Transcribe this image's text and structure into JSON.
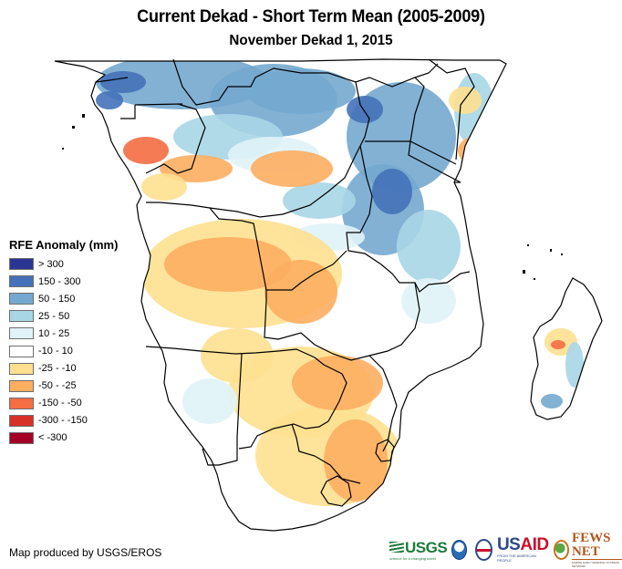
{
  "header": {
    "title": "Current Dekad - Short Term Mean (2005-2009)",
    "subtitle": "November Dekad 1, 2015"
  },
  "legend": {
    "title": "RFE Anomaly (mm)",
    "classes": [
      {
        "label": "> 300",
        "color": "#2b3594"
      },
      {
        "label": "150 - 300",
        "color": "#4472b8"
      },
      {
        "label": "50 - 150",
        "color": "#74a9cf"
      },
      {
        "label": "25 - 50",
        "color": "#a9d6e5"
      },
      {
        "label": "10 - 25",
        "color": "#e0f3f8"
      },
      {
        "label": "-10 - 10",
        "color": "#ffffff"
      },
      {
        "label": "-25 - -10",
        "color": "#fee090"
      },
      {
        "label": "-50 - -25",
        "color": "#fdae61"
      },
      {
        "label": "-150 - -50",
        "color": "#f46d43"
      },
      {
        "label": "-300 - -150",
        "color": "#d73027"
      },
      {
        "label": "< -300",
        "color": "#a50026"
      }
    ]
  },
  "map": {
    "region": "Central and Southern Africa",
    "border_color": "#000000",
    "background": "#ffffff"
  },
  "footer": {
    "credit": "Map produced by USGS/EROS",
    "logos": {
      "usgs": "USGS",
      "usgs_tagline": "science for a changing world",
      "noaa": "NOAA",
      "usaid_us": "US",
      "usaid_aid": "AID",
      "usaid_tagline": "FROM THE AMERICAN PEOPLE",
      "fews": "FEWS NET",
      "fews_tagline": "FAMINE EARLY WARNING SYSTEMS NETWORK"
    }
  }
}
